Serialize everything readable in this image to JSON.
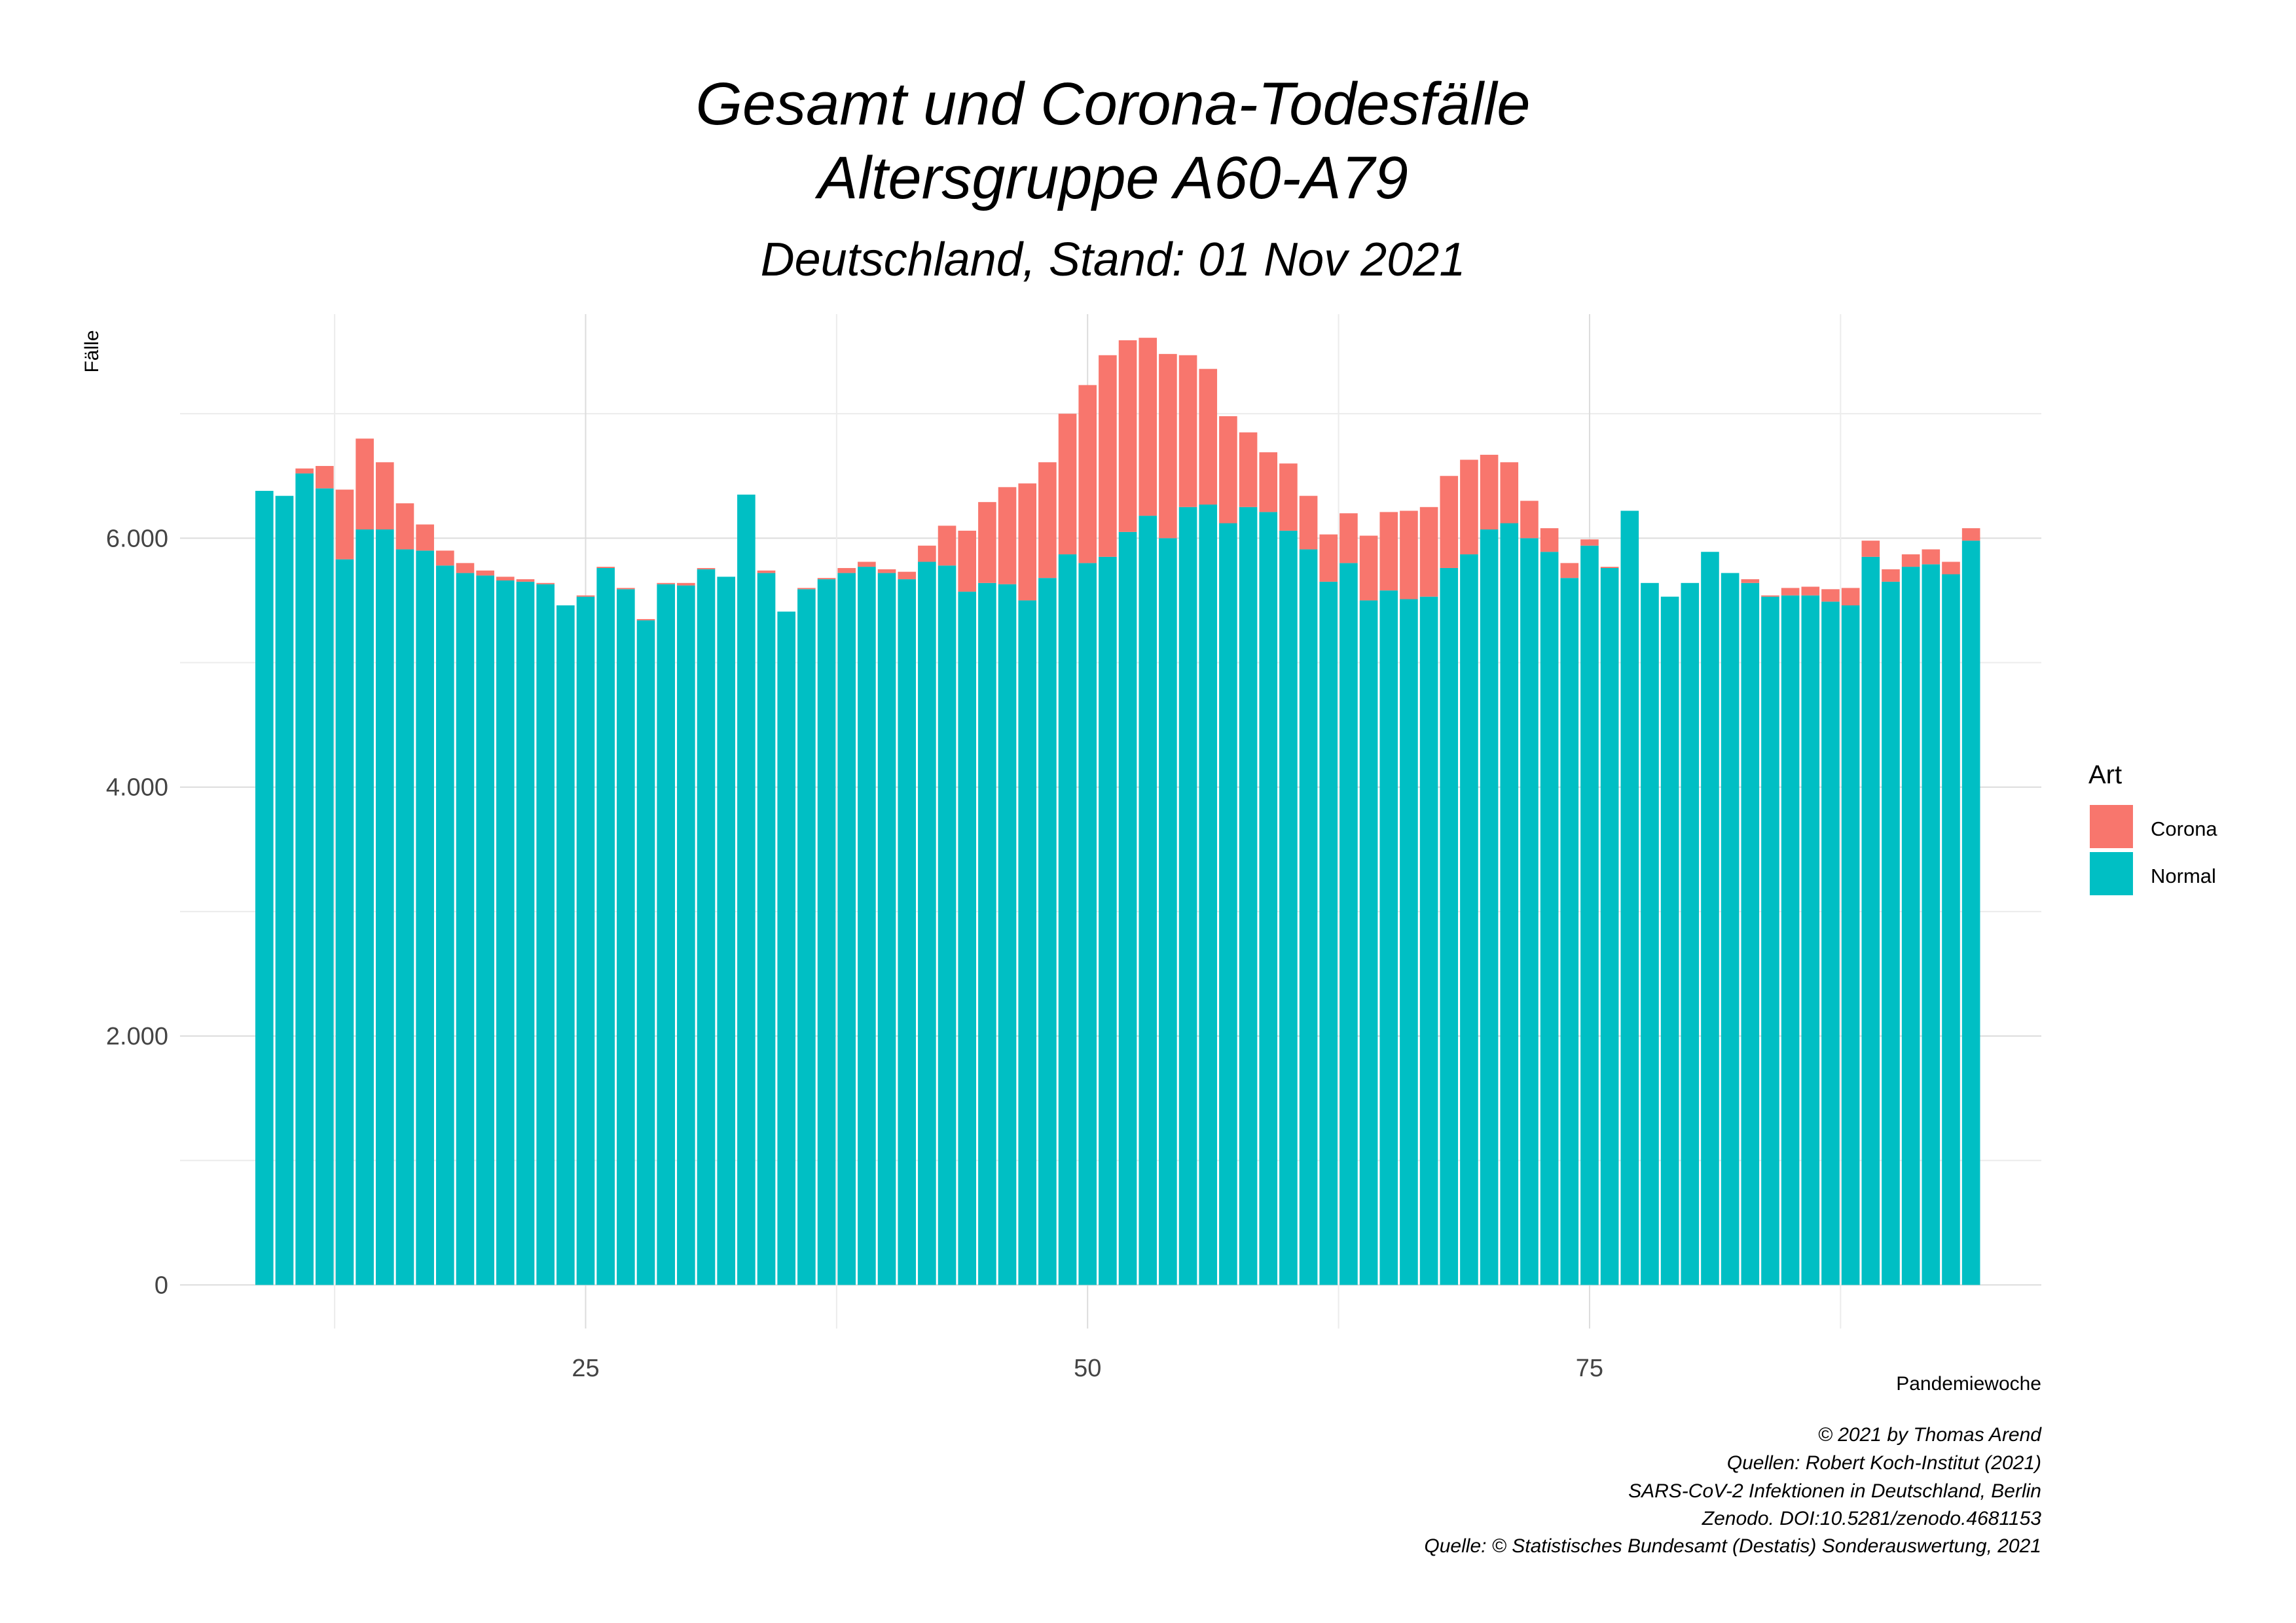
{
  "chart_data": {
    "type": "bar",
    "stacked": true,
    "title_line1": "Gesamt und Corona-Todesfälle",
    "title_line2": "Altersgruppe A60-A79",
    "subtitle": "Deutschland, Stand: 01 Nov 2021",
    "xlabel": "Pandemiewoche",
    "ylabel": "Fälle",
    "ylim": [
      -350,
      7800
    ],
    "xlim": [
      4.8,
      97.5
    ],
    "y_ticks": [
      0,
      2000,
      4000,
      6000
    ],
    "y_tick_labels": [
      "0",
      "2.000",
      "4.000",
      "6.000"
    ],
    "x_ticks": [
      25,
      50,
      75
    ],
    "x_tick_labels": [
      "25",
      "50",
      "75"
    ],
    "grid": true,
    "legend_position": "right",
    "legend_title": "Art",
    "legend": [
      {
        "name": "Corona",
        "color": "#F8766D"
      },
      {
        "name": "Normal",
        "color": "#00BFC4"
      }
    ],
    "x": [
      9,
      10,
      11,
      12,
      13,
      14,
      15,
      16,
      17,
      18,
      19,
      20,
      21,
      22,
      23,
      24,
      25,
      26,
      27,
      28,
      29,
      30,
      31,
      32,
      33,
      34,
      35,
      36,
      37,
      38,
      39,
      40,
      41,
      42,
      43,
      44,
      45,
      46,
      47,
      48,
      49,
      50,
      51,
      52,
      53,
      54,
      55,
      56,
      57,
      58,
      59,
      60,
      61,
      62,
      63,
      64,
      65,
      66,
      67,
      68,
      69,
      70,
      71,
      72,
      73,
      74,
      75,
      76,
      77,
      78,
      79,
      80,
      81,
      82,
      83,
      84,
      85,
      86,
      87,
      88,
      89,
      90,
      91,
      92,
      93,
      94
    ],
    "series": [
      {
        "name": "Normal",
        "color": "#00BFC4",
        "values": [
          6380,
          6340,
          6520,
          6400,
          5830,
          6070,
          6070,
          5910,
          5900,
          5780,
          5720,
          5700,
          5660,
          5650,
          5630,
          5460,
          5530,
          5760,
          5590,
          5340,
          5630,
          5620,
          5750,
          5690,
          6350,
          5720,
          5410,
          5590,
          5670,
          5720,
          5770,
          5720,
          5670,
          5810,
          5780,
          5570,
          5640,
          5630,
          5500,
          5680,
          5870,
          5800,
          5850,
          6050,
          6180,
          6000,
          6250,
          6270,
          6120,
          6250,
          6210,
          6060,
          5910,
          5650,
          5800,
          5500,
          5580,
          5510,
          5530,
          5760,
          5870,
          6070,
          6120,
          6000,
          5890,
          5680,
          5940,
          5760,
          6220,
          5640,
          5530,
          5640,
          5890,
          5720,
          5640,
          5530,
          5540,
          5540,
          5490,
          5460,
          5850,
          5650,
          5770,
          5790,
          5710,
          5980
        ]
      },
      {
        "name": "Corona",
        "color": "#F8766D",
        "values": [
          0,
          0,
          40,
          180,
          560,
          730,
          540,
          370,
          210,
          120,
          80,
          40,
          30,
          20,
          10,
          0,
          10,
          10,
          10,
          10,
          10,
          20,
          10,
          0,
          0,
          20,
          0,
          10,
          10,
          40,
          40,
          30,
          60,
          130,
          320,
          490,
          650,
          780,
          940,
          930,
          1130,
          1430,
          1620,
          1540,
          1430,
          1480,
          1220,
          1090,
          860,
          600,
          480,
          540,
          430,
          380,
          400,
          520,
          630,
          710,
          720,
          740,
          760,
          600,
          490,
          300,
          190,
          120,
          50,
          10,
          0,
          0,
          0,
          0,
          0,
          0,
          30,
          10,
          60,
          70,
          100,
          140,
          130,
          100,
          100,
          120,
          100,
          100
        ]
      }
    ]
  },
  "footer": {
    "credit_lines": [
      "© 2021 by Thomas Arend",
      "Quellen: Robert Koch-Institut (2021)",
      "SARS-CoV-2 Infektionen in Deutschland, Berlin",
      "Zenodo. DOI:10.5281/zenodo.4681153",
      "Quelle: © Statistisches Bundesamt (Destatis) Sonderauswertung, 2021"
    ]
  }
}
